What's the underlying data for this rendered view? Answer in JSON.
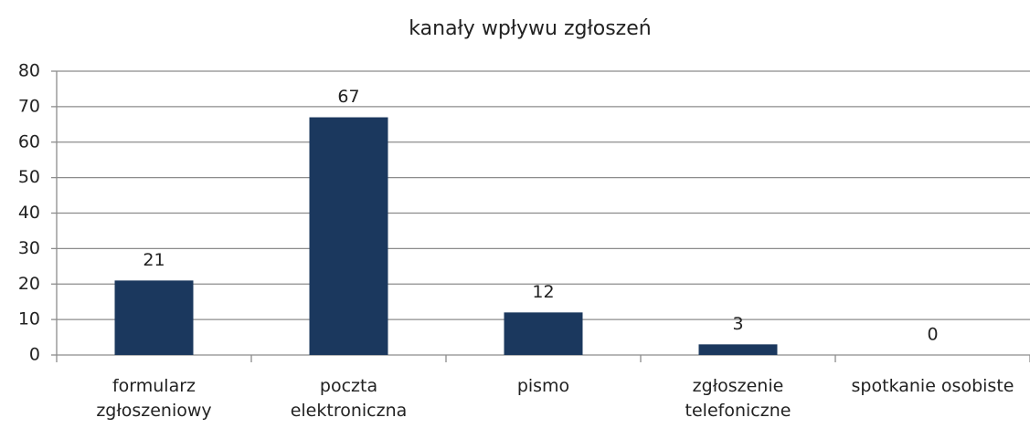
{
  "chart_data": {
    "type": "bar",
    "title": "kanały wpływu zgłoszeń",
    "categories": [
      "formularz zgłoszeniowy",
      "poczta elektroniczna",
      "pismo",
      "zgłoszenie telefoniczne",
      "spotkanie osobiste"
    ],
    "values": [
      21,
      67,
      12,
      3,
      0
    ],
    "color": "#1b385e",
    "ylim": [
      0,
      80
    ],
    "yticks": [
      0,
      10,
      20,
      30,
      40,
      50,
      60,
      70,
      80
    ],
    "grid": true
  }
}
